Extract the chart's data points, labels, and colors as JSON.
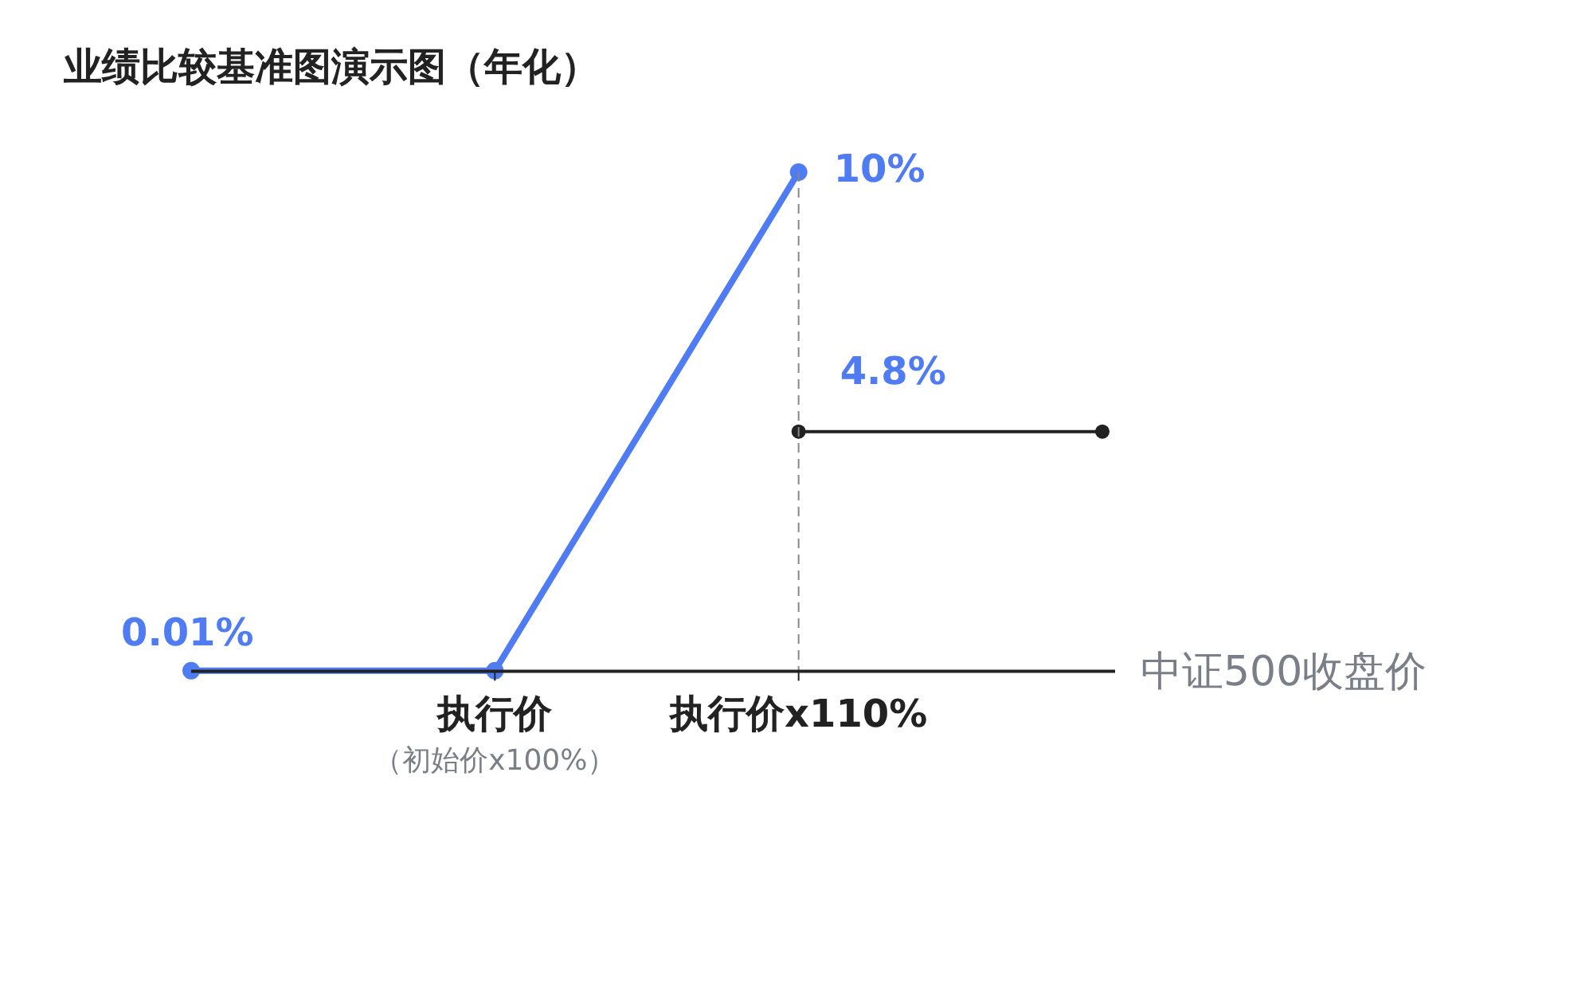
{
  "chart_data": {
    "type": "line",
    "title": "业绩比较基准图演示图（年化）",
    "xlabel": "中证500收盘价",
    "categories": [
      null,
      "执行价",
      "执行价x110%",
      null
    ],
    "annotations": [
      "（初始价x100%）"
    ],
    "series": [
      {
        "color": "#4f7cf3",
        "values": [
          0.01,
          0.01,
          10,
          null
        ],
        "value_labels": [
          "0.01%",
          null,
          "10%",
          null
        ]
      },
      {
        "color": "#222222",
        "values": [
          null,
          null,
          4.8,
          4.8
        ],
        "value_labels": [
          null,
          null,
          "4.8%",
          null
        ]
      }
    ],
    "ref_lines": [
      {
        "axis": "x",
        "value": "执行价x110%",
        "line_style": "dashed",
        "color": "#888888"
      }
    ],
    "grid": false,
    "legend": false,
    "marker": "circle",
    "line_style": "solid"
  }
}
